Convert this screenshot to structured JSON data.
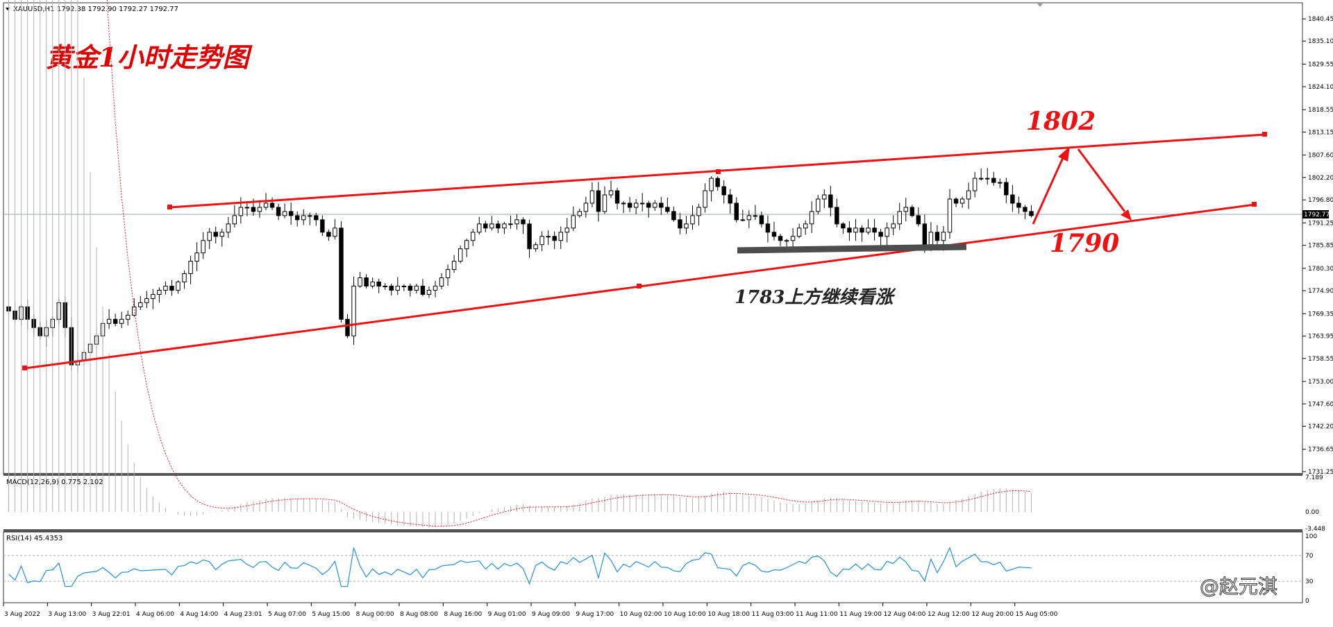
{
  "header": {
    "symbol_label": "XAUUSD,H1",
    "ohlc": "1792.38 1792.90 1792.27 1792.77",
    "title": "黄金1小时走势图",
    "title_color": "#e00000"
  },
  "annotations": {
    "resistance_label": "1802",
    "support_label": "1790",
    "note": "1783上方继续看涨",
    "line_color": "#ee1111"
  },
  "watermark": "@赵元淇",
  "indicators": {
    "macd_label": "MACD(12,26,9) 0.775 2.102",
    "macd_ticks": [
      "7.189",
      "0.00",
      "-3.448"
    ],
    "rsi_label": "RSI(14) 45.4353",
    "rsi_ticks": [
      "100",
      "70",
      "30",
      "0"
    ]
  },
  "price_axis": {
    "current_price": "1792.77",
    "ticks": [
      "1840.45",
      "1835.10",
      "1829.55",
      "1824.10",
      "1818.55",
      "1813.15",
      "1807.60",
      "1802.20",
      "1796.80",
      "1791.25",
      "1785.85",
      "1780.30",
      "1774.90",
      "1769.35",
      "1763.95",
      "1758.55",
      "1753.00",
      "1747.60",
      "1742.20",
      "1736.65",
      "1731.25"
    ]
  },
  "time_axis": {
    "ticks": [
      "3 Aug 2022",
      "3 Aug 13:00",
      "3 Aug 22:01",
      "4 Aug 06:00",
      "4 Aug 14:00",
      "4 Aug 23:01",
      "5 Aug 07:00",
      "5 Aug 15:00",
      "8 Aug 00:00",
      "8 Aug 08:00",
      "8 Aug 16:00",
      "9 Aug 01:00",
      "9 Aug 09:00",
      "9 Aug 17:00",
      "10 Aug 02:00",
      "10 Aug 10:00",
      "10 Aug 18:00",
      "11 Aug 03:00",
      "11 Aug 11:00",
      "11 Aug 19:00",
      "12 Aug 04:00",
      "12 Aug 12:00",
      "12 Aug 20:00",
      "15 Aug 05:00"
    ]
  },
  "chart_data": {
    "type": "candlestick",
    "symbol": "XAUUSD",
    "timeframe": "H1",
    "ylim": [
      1731.25,
      1843.0
    ],
    "closes": [
      1770,
      1768,
      1771,
      1768,
      1766,
      1764,
      1766,
      1768,
      1772,
      1766,
      1757,
      1758,
      1760,
      1762,
      1764,
      1767,
      1768,
      1767,
      1768,
      1769,
      1771,
      1772,
      1773,
      1774,
      1775,
      1776,
      1775,
      1777,
      1779,
      1782,
      1784,
      1787,
      1789,
      1788,
      1789,
      1791,
      1793,
      1795,
      1795,
      1794,
      1795,
      1796,
      1795,
      1793,
      1794,
      1793,
      1792,
      1793,
      1793,
      1792,
      1789,
      1788,
      1790,
      1768,
      1764,
      1776,
      1778,
      1776,
      1777,
      1776,
      1776,
      1775,
      1776,
      1776,
      1775,
      1776,
      1774,
      1775,
      1776,
      1778,
      1780,
      1782,
      1785,
      1787,
      1789,
      1791,
      1790,
      1791,
      1790,
      1791,
      1791,
      1792,
      1791,
      1785,
      1786,
      1788,
      1788,
      1787,
      1789,
      1790,
      1793,
      1794,
      1796,
      1799,
      1794,
      1798,
      1799,
      1796,
      1796,
      1795,
      1796,
      1796,
      1795,
      1796,
      1795,
      1794,
      1792,
      1790,
      1791,
      1793,
      1795,
      1799,
      1802,
      1800,
      1798,
      1796,
      1792,
      1792,
      1793,
      1793,
      1791,
      1789,
      1788,
      1787,
      1787,
      1788,
      1790,
      1791,
      1794,
      1797,
      1798,
      1795,
      1791,
      1790,
      1789,
      1790,
      1789,
      1790,
      1789,
      1788,
      1790,
      1791,
      1794,
      1795,
      1793,
      1791,
      1786,
      1789,
      1787,
      1789,
      1797,
      1796,
      1797,
      1799,
      1802,
      1802,
      1802,
      1801,
      1801,
      1798,
      1796,
      1795,
      1794,
      1793
    ],
    "levels": {
      "resistance_target": 1802,
      "support_target": 1790,
      "bullish_above": 1783
    }
  }
}
